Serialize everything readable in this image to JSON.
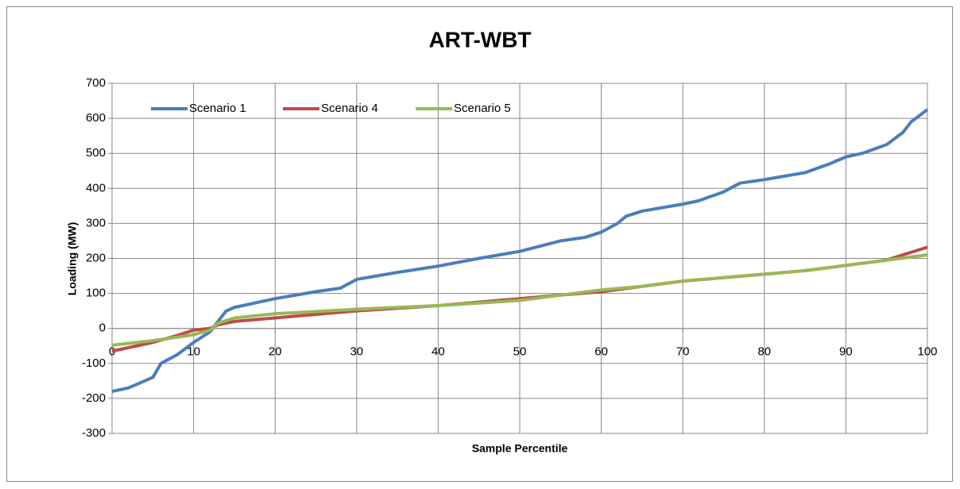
{
  "chart_data": {
    "type": "line",
    "title": "ART-WBT",
    "x_label": "Sample Percentile",
    "y_label": "Loading (MW)",
    "xlim": [
      0,
      100
    ],
    "xticks": [
      0,
      10,
      20,
      30,
      40,
      50,
      60,
      70,
      80,
      90,
      100
    ],
    "ylim": [
      -300,
      700
    ],
    "yticks": [
      -300,
      -200,
      -100,
      0,
      100,
      200,
      300,
      400,
      500,
      600,
      700
    ],
    "grid": true,
    "legend": "top-left",
    "series": [
      {
        "name": "Scenario 1",
        "color": "#4a7ebb",
        "x": [
          0,
          2,
          4,
          5,
          6,
          8,
          10,
          12,
          13,
          14,
          15,
          17,
          20,
          25,
          28,
          30,
          35,
          40,
          45,
          50,
          55,
          58,
          60,
          62,
          63,
          65,
          70,
          72,
          75,
          77,
          80,
          85,
          88,
          90,
          92,
          95,
          97,
          98,
          100
        ],
        "values": [
          -180,
          -170,
          -150,
          -140,
          -100,
          -75,
          -40,
          -10,
          20,
          50,
          60,
          70,
          85,
          105,
          115,
          140,
          160,
          178,
          200,
          220,
          250,
          260,
          275,
          300,
          320,
          335,
          355,
          365,
          390,
          415,
          425,
          445,
          470,
          490,
          500,
          525,
          560,
          590,
          625
        ]
      },
      {
        "name": "Scenario 4",
        "color": "#be4b48",
        "x": [
          0,
          3,
          5,
          8,
          10,
          12,
          13,
          15,
          20,
          25,
          30,
          40,
          50,
          55,
          60,
          65,
          70,
          75,
          80,
          85,
          90,
          95,
          97,
          100
        ],
        "values": [
          -65,
          -50,
          -40,
          -20,
          -5,
          0,
          10,
          20,
          30,
          40,
          50,
          65,
          85,
          95,
          105,
          120,
          135,
          145,
          155,
          165,
          180,
          195,
          210,
          232
        ]
      },
      {
        "name": "Scenario 5",
        "color": "#98b954",
        "x": [
          0,
          5,
          8,
          10,
          12,
          13,
          15,
          20,
          25,
          30,
          40,
          50,
          55,
          60,
          65,
          70,
          75,
          80,
          85,
          90,
          95,
          100
        ],
        "values": [
          -48,
          -35,
          -25,
          -18,
          -5,
          15,
          30,
          42,
          48,
          55,
          65,
          80,
          95,
          110,
          120,
          135,
          145,
          155,
          165,
          180,
          195,
          210
        ]
      }
    ]
  }
}
